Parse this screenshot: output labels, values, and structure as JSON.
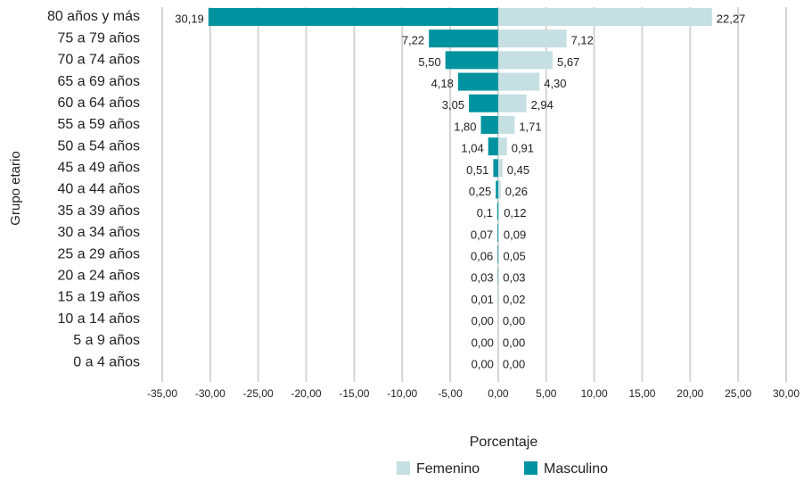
{
  "chart_data": {
    "type": "bar_horizontal_pyramid",
    "categories": [
      "80 años y más",
      "75 a 79 años",
      "70 a 74 años",
      "65 a 69 años",
      "60 a 64 años",
      "55 a 59 años",
      "50 a 54 años",
      "45 a 49 años",
      "40 a 44 años",
      "35 a 39 años",
      "30 a 34 años",
      "25 a 29 años",
      "20 a 24 años",
      "15 a 19 años",
      "10 a 14 años",
      "5 a 9 años",
      "0 a 4 años"
    ],
    "series": [
      {
        "name": "Femenino",
        "color": "#c5dfe3",
        "values": [
          22.27,
          7.12,
          5.67,
          4.3,
          2.94,
          1.71,
          0.91,
          0.45,
          0.26,
          0.12,
          0.09,
          0.05,
          0.03,
          0.02,
          0.0,
          0.0,
          0.0
        ],
        "value_labels": [
          "22,27",
          "7,12",
          "5,67",
          "4,30",
          "2,94",
          "1,71",
          "0,91",
          "0,45",
          "0,26",
          "0,12",
          "0,09",
          "0,05",
          "0,03",
          "0,02",
          "0,00",
          "0,00",
          "0,00"
        ]
      },
      {
        "name": "Masculino",
        "color": "#00939f",
        "values": [
          -30.19,
          -7.22,
          -5.5,
          -4.18,
          -3.05,
          -1.8,
          -1.04,
          -0.51,
          -0.25,
          -0.1,
          -0.07,
          -0.06,
          -0.03,
          -0.01,
          0,
          0,
          0
        ],
        "value_labels": [
          "30,19",
          "7,22",
          "5,50",
          "4,18",
          "3,05",
          "1,80",
          "1,04",
          "0,51",
          "0,25",
          "0,1",
          "0,07",
          "0,06",
          "0,03",
          "0,01",
          "0,00",
          "0,00",
          "0,00"
        ]
      }
    ],
    "xlabel": "Porcentaje",
    "ylabel": "Grupo etario",
    "xlim": [
      -35,
      30
    ],
    "xticks": [
      {
        "value": -35,
        "label": "-35,00"
      },
      {
        "value": -30,
        "label": "-30,00"
      },
      {
        "value": -25,
        "label": "-25,00"
      },
      {
        "value": -20,
        "label": "-20,00"
      },
      {
        "value": -15,
        "label": "-15,00"
      },
      {
        "value": -10,
        "label": "-10,00"
      },
      {
        "value": -5,
        "label": "-5,00"
      },
      {
        "value": 0,
        "label": "0,00"
      },
      {
        "value": 5,
        "label": "5,00"
      },
      {
        "value": 10,
        "label": "10,00"
      },
      {
        "value": 15,
        "label": "15,00"
      },
      {
        "value": 20,
        "label": "20,00"
      },
      {
        "value": 25,
        "label": "25,00"
      },
      {
        "value": 30,
        "label": "30,00"
      }
    ],
    "grid": true,
    "legend": "bottom"
  }
}
